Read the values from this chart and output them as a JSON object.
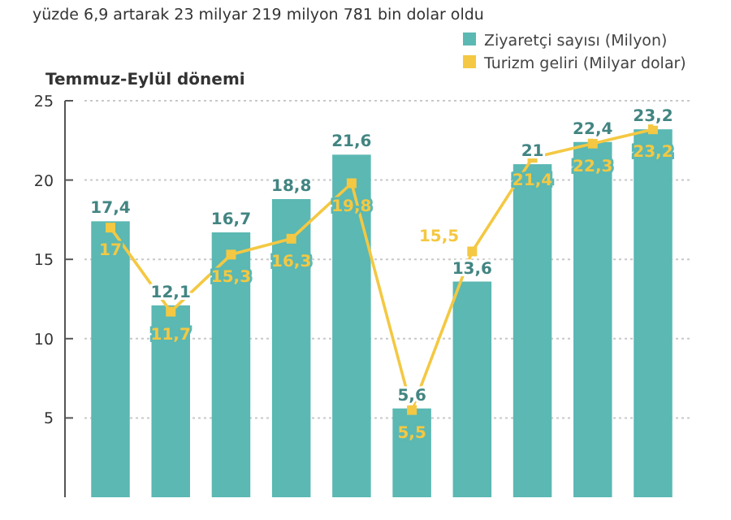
{
  "chart_data": {
    "type": "bar",
    "title": "yüzde 6,9 artarak 23 milyar 219 milyon 781 bin dolar oldu",
    "subtitle": "Temmuz-Eylül dönemi",
    "categories": [
      null,
      null,
      null,
      null,
      null,
      null,
      null,
      null,
      null,
      null
    ],
    "series": [
      {
        "name": "Ziyaretçi sayısı (Milyon)",
        "color": "#5bb8b3",
        "values": [
          17.4,
          12.1,
          16.7,
          18.8,
          21.6,
          5.6,
          13.6,
          21,
          22.4,
          23.2
        ],
        "value_labels": [
          "17,4",
          "12,1",
          "16,7",
          "18,8",
          "21,6",
          "5,6",
          "13,6",
          "21",
          "22,4",
          "23,2"
        ]
      },
      {
        "name": "Turizm geliri (Milyar dolar)",
        "type": "line",
        "color": "#f4c842",
        "values": [
          17,
          11.7,
          15.3,
          16.3,
          19.8,
          5.5,
          15.5,
          21.4,
          22.3,
          23.2
        ],
        "value_labels": [
          "17",
          "11,7",
          "15,3",
          "16,3",
          "19,8",
          "5,5",
          "15,5",
          "21,4",
          "22,3",
          "23,2"
        ]
      }
    ],
    "ylim": [
      0,
      25
    ],
    "yticks": [
      5,
      10,
      15,
      20,
      25
    ],
    "grid": "y",
    "legend": "top right",
    "marker": "square"
  }
}
